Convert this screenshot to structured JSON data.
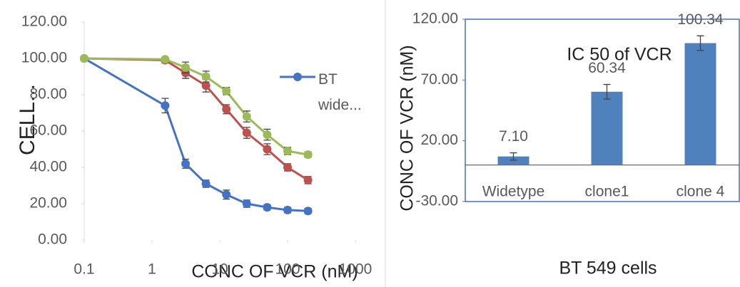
{
  "chart_data": [
    {
      "type": "line",
      "y_label": "CELL...",
      "x_label": "CONC OF VCR (nM)",
      "xscale": "log",
      "xlim": [
        0.1,
        1000
      ],
      "xticks": [
        0.1,
        1,
        10,
        100,
        1000
      ],
      "ylim": [
        0,
        120
      ],
      "yticks": [
        {
          "value": 0,
          "label": "0.00"
        },
        {
          "value": 20,
          "label": "20.00"
        },
        {
          "value": 40,
          "label": "40.00"
        },
        {
          "value": 60,
          "label": "60.00"
        },
        {
          "value": 80,
          "label": "80.00"
        },
        {
          "value": 100,
          "label": "100.00"
        },
        {
          "value": 120,
          "label": "120.00"
        }
      ],
      "x": [
        0.1,
        1.5625,
        3.125,
        6.25,
        12.5,
        25,
        50,
        100,
        200
      ],
      "series": [
        {
          "name": "BT wide...",
          "color": "#4472c4",
          "values": [
            100,
            74,
            42,
            31,
            25,
            20,
            18,
            16.5,
            16
          ],
          "errors": [
            0,
            4,
            2.5,
            2,
            2.5,
            2,
            1.5,
            1.5,
            1.5
          ]
        },
        {
          "color": "#c0504d",
          "values": [
            100,
            99,
            92,
            85,
            72,
            59,
            50,
            40,
            33
          ],
          "errors": [
            0,
            1.5,
            3,
            3.5,
            2.5,
            3,
            3,
            2,
            2
          ]
        },
        {
          "color": "#9bbb59",
          "values": [
            100,
            99.5,
            95,
            90,
            82,
            68,
            58,
            49,
            47
          ],
          "errors": [
            0,
            1,
            3,
            3,
            2,
            3,
            3,
            2,
            1.5
          ]
        }
      ],
      "legend": "right"
    },
    {
      "type": "bar",
      "title": "IC 50 of VCR",
      "x_label": "BT 549 cells",
      "y_label": "CONC OF VCR (nM)",
      "categories": [
        "Widetype",
        "clone1",
        "clone 4"
      ],
      "values": [
        7.1,
        60.34,
        100.34
      ],
      "value_labels": [
        "7.10",
        "60.34",
        "100.34"
      ],
      "errors": [
        3,
        6,
        6
      ],
      "color": "#4f81bd",
      "ylim": [
        -30,
        120
      ],
      "yticks": [
        {
          "value": -30,
          "label": "-30.00"
        },
        {
          "value": 20,
          "label": "20.00"
        },
        {
          "value": 70,
          "label": "70.00"
        },
        {
          "value": 120,
          "label": "120.00"
        }
      ]
    }
  ]
}
